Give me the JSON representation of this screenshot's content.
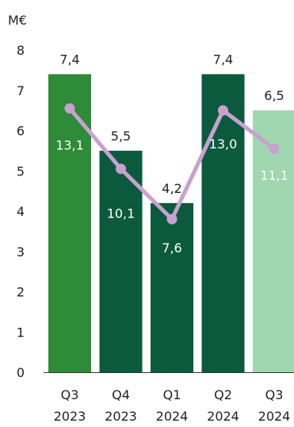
{
  "chart_data": {
    "type": "bar+line",
    "unit_label": "M€",
    "categories": [
      [
        "Q3",
        "2023"
      ],
      [
        "Q4",
        "2023"
      ],
      [
        "Q1",
        "2024"
      ],
      [
        "Q2",
        "2024"
      ],
      [
        "Q3",
        "2024"
      ]
    ],
    "bar_values": [
      7.4,
      5.5,
      4.2,
      7.4,
      6.5
    ],
    "bar_labels": [
      "7,4",
      "5,5",
      "4,2",
      "7,4",
      "6,5"
    ],
    "bar_colors": [
      "#2e8b37",
      "#0b5a3e",
      "#0b5a3e",
      "#0b5a3e",
      "#a0d6b0"
    ],
    "line_values": [
      13.1,
      10.1,
      7.6,
      13.0,
      11.1
    ],
    "line_labels": [
      "13,1",
      "10,1",
      "7,6",
      "13,0",
      "11,1"
    ],
    "line_color": "#c9a1cf",
    "y_ticks": [
      "0",
      "1",
      "2",
      "3",
      "4",
      "5",
      "6",
      "7",
      "8"
    ],
    "ylim": [
      0,
      8
    ],
    "grid": false
  }
}
